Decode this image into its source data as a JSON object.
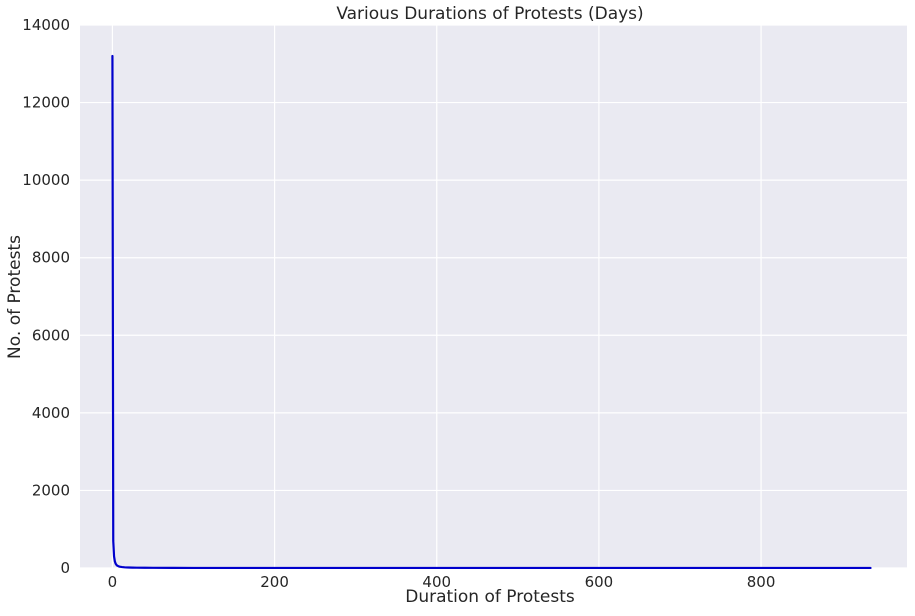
{
  "chart_data": {
    "type": "line",
    "title": "Various Durations of Protests (Days)",
    "xlabel": "Duration of Protests",
    "ylabel": "No. of Protests",
    "xlim": [
      -40,
      980
    ],
    "ylim": [
      0,
      14000
    ],
    "x_ticks": [
      0,
      200,
      400,
      600,
      800
    ],
    "y_ticks": [
      0,
      2000,
      4000,
      6000,
      8000,
      10000,
      12000,
      14000
    ],
    "grid": true,
    "legend": "none",
    "series": [
      {
        "color": "#0000cc",
        "points": [
          [
            0,
            13200
          ],
          [
            1,
            700
          ],
          [
            2,
            300
          ],
          [
            3,
            170
          ],
          [
            4,
            110
          ],
          [
            5,
            80
          ],
          [
            6,
            60
          ],
          [
            7,
            50
          ],
          [
            8,
            40
          ],
          [
            9,
            35
          ],
          [
            10,
            30
          ],
          [
            12,
            24
          ],
          [
            15,
            18
          ],
          [
            20,
            13
          ],
          [
            25,
            10
          ],
          [
            30,
            8
          ],
          [
            40,
            6
          ],
          [
            50,
            5
          ],
          [
            75,
            3
          ],
          [
            100,
            2
          ],
          [
            150,
            2
          ],
          [
            200,
            1
          ],
          [
            300,
            1
          ],
          [
            400,
            1
          ],
          [
            500,
            1
          ],
          [
            600,
            1
          ],
          [
            700,
            1
          ],
          [
            800,
            1
          ],
          [
            900,
            1
          ],
          [
            935,
            1
          ]
        ]
      }
    ]
  },
  "colors": {
    "plot_background": "#eaeaf2",
    "grid": "#ffffff",
    "line": "#0000cc"
  }
}
